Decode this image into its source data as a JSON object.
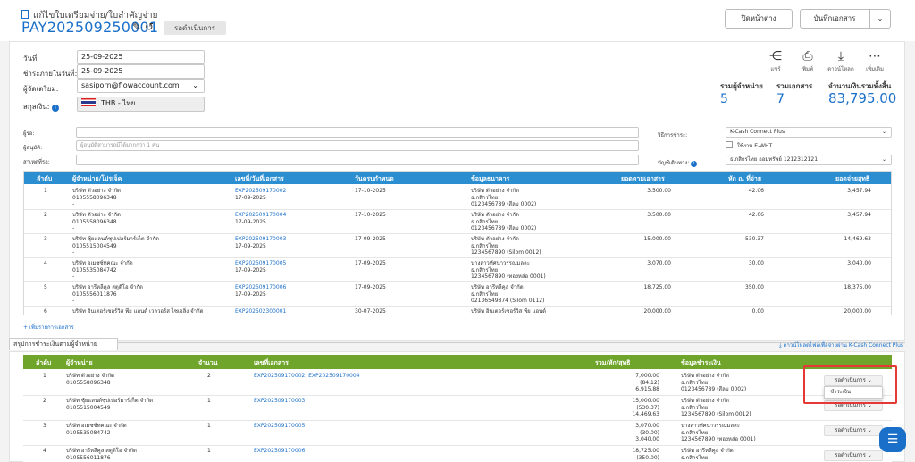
{
  "header": {
    "subtitle": "แก้ไขใบเตรียมจ่าย/ใบสำคัญจ่าย",
    "doc_no": "PAY202509250001",
    "status": "รอดำเนินการ",
    "close_btn": "ปิดหน้าต่าง",
    "save_btn": "บันทึกเอกสาร"
  },
  "form": {
    "date_label": "วันที่:",
    "date_value": "25-09-2025",
    "pay_date_label": "ชำระภายในวันที่:",
    "pay_date_value": "25-09-2025",
    "preparer_label": "ผู้จัดเตรียม:",
    "preparer_value": "sasiporn@flowaccount.com",
    "currency_label": "สกุลเงิน:",
    "currency_value": "THB - ไทย"
  },
  "tools": [
    {
      "icon": "share-icon",
      "label": "แชร์",
      "glyph": "⋲"
    },
    {
      "icon": "print-icon",
      "label": "พิมพ์",
      "glyph": "⎙"
    },
    {
      "icon": "download-icon",
      "label": "ดาวน์โหลด",
      "glyph": "⤓"
    },
    {
      "icon": "more-icon",
      "label": "เพิ่มเติม",
      "glyph": "⋯"
    }
  ],
  "stats": {
    "vendors_label": "รวมผู้จำหน่าย",
    "vendors_value": "5",
    "docs_label": "รวมเอกสาร",
    "docs_value": "7",
    "total_label": "จำนวนเงินรวมทั้งสิ้น",
    "total_value": "83,795.00"
  },
  "approval": {
    "to_label": "ผู้รอ:",
    "approver_label": "ผู้อนุมัติ:",
    "approver_placeholder": "ผู้อนุมัติสามารถมีได้มากกว่า 1 คน",
    "reason_label": "สาเหตุที่รอ:",
    "method_label": "วิธีการชำระ:",
    "method_value": "K-Cash Connect Plus",
    "ewht_label": "ใช้งาน E-WHT",
    "account_label": "บัญชีเดินทาง:",
    "account_value": "ธ.กสิกรไทย ออมทรัพย์ 1212312121"
  },
  "table1": {
    "headers": [
      "ลำดับ",
      "ผู้จำหน่าย/โปรเจ็ค",
      "เลขที่/วันที่เอกสาร",
      "วันครบกำหนด",
      "ข้อมูลธนาคาร",
      "ยอดตามเอกสาร",
      "หัก ณ ที่จ่าย",
      "ยอดจ่ายสุทธิ"
    ],
    "rows": [
      {
        "no": "1",
        "vendor": "บริษัท ตัวอย่าง จำกัด",
        "tax": "0105558096348",
        "dash": "-",
        "doc": "EXP202509170002",
        "docdate": "17-09-2025",
        "due": "17-10-2025",
        "bank1": "บริษัท ตัวอย่าง จำกัด",
        "bank2": "ธ.กสิกรไทย",
        "bank3": "0123456789 (สีลม 0002)",
        "amount": "3,500.00",
        "wht": "42.06",
        "net": "3,457.94"
      },
      {
        "no": "2",
        "vendor": "บริษัท ตัวอย่าง จำกัด",
        "tax": "0105558096348",
        "dash": "-",
        "doc": "EXP202509170004",
        "docdate": "17-09-2025",
        "due": "17-10-2025",
        "bank1": "บริษัท ตัวอย่าง จำกัด",
        "bank2": "ธ.กสิกรไทย",
        "bank3": "0123456789 (สีลม 0002)",
        "amount": "3,500.00",
        "wht": "42.06",
        "net": "3,457.94"
      },
      {
        "no": "3",
        "vendor": "บริษัท ซุ้ยแลนด์ซุปเปอร์มาร์เก็ต จำกัด",
        "tax": "0105515004549",
        "dash": "-",
        "doc": "EXP202509170003",
        "docdate": "17-09-2025",
        "due": "17-09-2025",
        "bank1": "บริษัท ตัวอย่าง จำกัด",
        "bank2": "ธ.กสิกรไทย",
        "bank3": "1234567890 (Silom 0012)",
        "amount": "15,000.00",
        "wht": "530.37",
        "net": "14,469.63"
      },
      {
        "no": "4",
        "vendor": "บริษัท อเมซซ์ทคณะ จำกัด",
        "tax": "0105535084742",
        "dash": "-",
        "doc": "EXP202509170005",
        "docdate": "17-09-2025",
        "due": "17-09-2025",
        "bank1": "นางสาวทัศนาวรรณมลละ",
        "bank2": "ธ.กสิกรไทย",
        "bank3": "1234567890 (ทองหล่อ 0001)",
        "amount": "3,070.00",
        "wht": "30.00",
        "net": "3,040.00"
      },
      {
        "no": "5",
        "vendor": "บริษัท อารีหลีคูล สตูดิโอ จำกัด",
        "tax": "0105556011876",
        "dash": "-",
        "doc": "EXP202509170006",
        "docdate": "17-09-2025",
        "due": "17-09-2025",
        "bank1": "บริษัท อารีหลีคูล จำกัด",
        "bank2": "ธ.กสิกรไทย",
        "bank3": "02136549874 (Silom 0112)",
        "amount": "18,725.00",
        "wht": "350.00",
        "net": "18,375.00"
      },
      {
        "no": "6",
        "vendor": "บริษัท อินเตอร์เซอร์วิส พีย แอนด์ เวลวอร์ส ไซเอลิ่ง จำกัด",
        "tax": "",
        "dash": "",
        "doc": "EXP202502300001",
        "docdate": "",
        "due": "30-07-2025",
        "bank1": "บริษัท อินเตอร์เซอร์วิส พีย แอนด์",
        "bank2": "",
        "bank3": "",
        "amount": "20,000.00",
        "wht": "0.00",
        "net": "20,000.00"
      }
    ],
    "add_link": "+ เพิ่มรายการเอกสาร"
  },
  "summary": {
    "tab_label": "สรุปการชำระเงินตามผู้จำหน่าย",
    "download_link": "ดาวน์โหลดไฟล์เพื่อจ่ายผ่าน K-Cash Connect Plus",
    "headers": [
      "ลำดับ",
      "ผู้จำหน่าย",
      "จำนวน",
      "เลขที่เอกสาร",
      "รวม/หัก/สุทธิ",
      "ข้อมูลชำระเงิน"
    ],
    "rows": [
      {
        "no": "1",
        "vendor": "บริษัท ตัวอย่าง จำกัด",
        "tax": "0105558096348",
        "count": "2",
        "docs": "EXP202509170002, EXP202509170004",
        "t1": "7,000.00",
        "t2": "(84.12)",
        "t3": "6,915.88",
        "p1": "บริษัท ตัวอย่าง จำกัด",
        "p2": "ธ.กสิกรไทย",
        "p3": "0123456789 (สีลม 0002)",
        "status": "รอดำเนินการ"
      },
      {
        "no": "2",
        "vendor": "บริษัท ซุ้ยแลนด์ซุปเปอร์มาร์เก็ต จำกัด",
        "tax": "0105515004549",
        "count": "1",
        "docs": "EXP202509170003",
        "t1": "15,000.00",
        "t2": "(530.37)",
        "t3": "14,469.63",
        "p1": "บริษัท ตัวอย่าง จำกัด",
        "p2": "ธ.กสิกรไทย",
        "p3": "1234567890 (Silom 0012)",
        "status": "รอดำเนินการ"
      },
      {
        "no": "3",
        "vendor": "บริษัท อเมซซ์ทคณะ จำกัด",
        "tax": "0105535084742",
        "count": "1",
        "docs": "EXP202509170005",
        "t1": "3,070.00",
        "t2": "(30.00)",
        "t3": "3,040.00",
        "p1": "นางสาวทัศนาวรรณมลละ",
        "p2": "ธ.กสิกรไทย",
        "p3": "1234567890 (ทองหล่อ 0001)",
        "status": "รอดำเนินการ"
      },
      {
        "no": "4",
        "vendor": "บริษัท อารีหลีคูล สตูดิโอ จำกัด",
        "tax": "0105556011876",
        "count": "1",
        "docs": "EXP202509170006",
        "t1": "18,725.00",
        "t2": "(350.00)",
        "t3": "",
        "p1": "บริษัท อารีหลีคูล จำกัด",
        "p2": "ธ.กสิกรไทย",
        "p3": "",
        "status": "รอดำเนินการ"
      }
    ],
    "dropdown_option": "ชำระเงิน"
  },
  "colors": {
    "accent": "#1a6fc9",
    "table_header": "#6ea52a",
    "highlight": "#e53935"
  }
}
